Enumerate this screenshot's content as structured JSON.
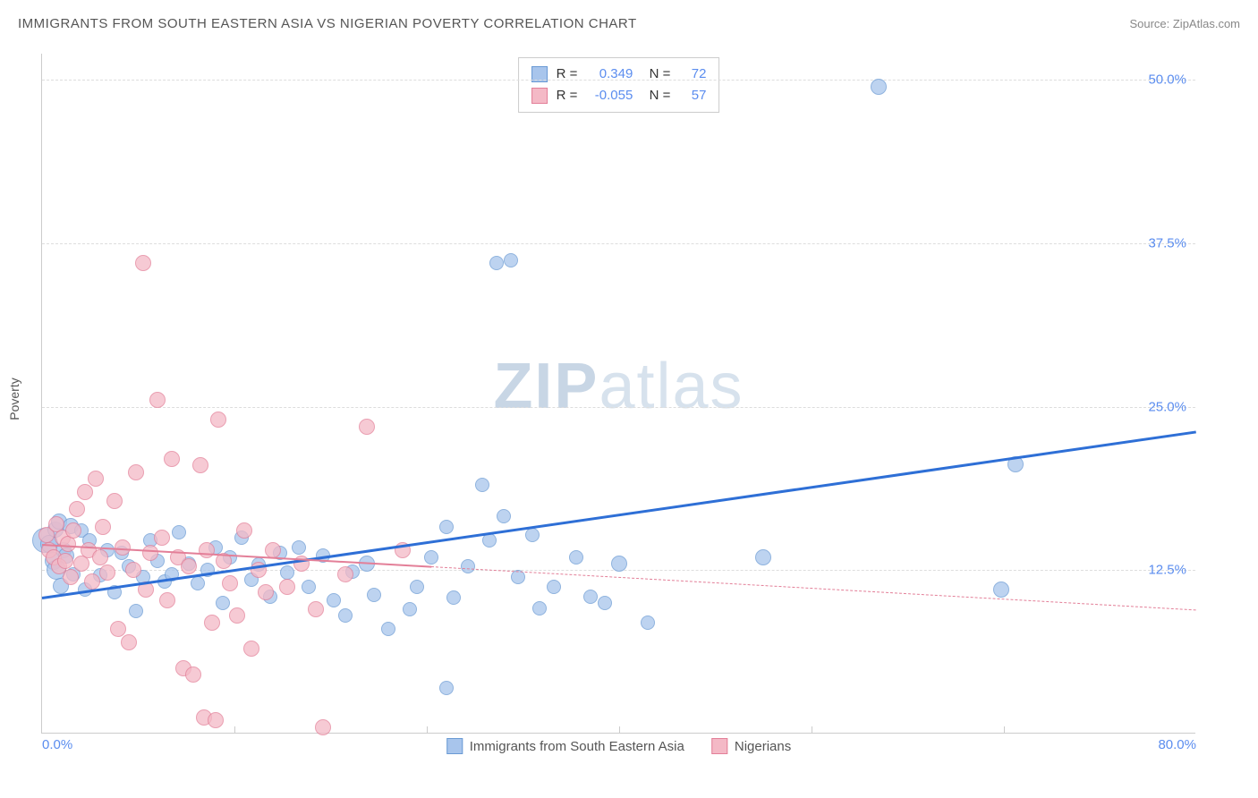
{
  "header": {
    "title": "IMMIGRANTS FROM SOUTH EASTERN ASIA VS NIGERIAN POVERTY CORRELATION CHART",
    "source": "Source: ZipAtlas.com"
  },
  "watermark": {
    "text_bold": "ZIP",
    "text_light": "atlas"
  },
  "chart": {
    "type": "scatter",
    "yaxis_title": "Poverty",
    "xlim": [
      0,
      80
    ],
    "ylim": [
      0,
      52
    ],
    "xticks": [
      {
        "v": 0,
        "label": "0.0%",
        "align": "left"
      },
      {
        "v": 80,
        "label": "80.0%",
        "align": "right"
      }
    ],
    "xticks_minor": [
      13.33,
      26.67,
      40,
      53.33,
      66.67
    ],
    "yticks": [
      {
        "v": 12.5,
        "label": "12.5%"
      },
      {
        "v": 25.0,
        "label": "25.0%"
      },
      {
        "v": 37.5,
        "label": "37.5%"
      },
      {
        "v": 50.0,
        "label": "50.0%"
      }
    ],
    "background_color": "#ffffff",
    "grid_color": "#dddddd",
    "series": [
      {
        "name": "Immigrants from South Eastern Asia",
        "name_short": "sea",
        "R": "0.349",
        "N": "72",
        "marker_fill": "#a8c5ec",
        "marker_stroke": "#6a9ad4",
        "marker_opacity": 0.75,
        "marker_r": 8,
        "trend": {
          "x0": 0,
          "y0": 10.5,
          "x1": 80,
          "y1": 23.2,
          "color": "#2e6fd6",
          "dashed": false,
          "solid_until_x": 80
        },
        "points": [
          [
            0.2,
            14.8,
            14
          ],
          [
            0.5,
            14.5,
            10
          ],
          [
            0.8,
            13.2,
            10
          ],
          [
            0.9,
            15.6,
            9
          ],
          [
            1.0,
            12.5,
            11
          ],
          [
            1.2,
            16.2,
            9
          ],
          [
            1.3,
            11.3,
            9
          ],
          [
            1.5,
            14.0,
            9
          ],
          [
            1.7,
            13.6,
            9
          ],
          [
            2.0,
            15.9,
            9
          ],
          [
            2.2,
            12.2,
            8
          ],
          [
            2.7,
            15.5,
            8
          ],
          [
            3.0,
            11.0,
            8
          ],
          [
            3.3,
            14.8,
            8
          ],
          [
            4.0,
            12.1,
            8
          ],
          [
            4.5,
            14.0,
            8
          ],
          [
            5.0,
            10.8,
            8
          ],
          [
            5.5,
            13.8,
            8
          ],
          [
            6.0,
            12.8,
            8
          ],
          [
            6.5,
            9.4,
            8
          ],
          [
            7.0,
            12.0,
            8
          ],
          [
            7.5,
            14.8,
            8
          ],
          [
            8.0,
            13.2,
            8
          ],
          [
            8.5,
            11.6,
            8
          ],
          [
            9.0,
            12.2,
            8
          ],
          [
            9.5,
            15.4,
            8
          ],
          [
            10.2,
            13.0,
            8
          ],
          [
            10.8,
            11.5,
            8
          ],
          [
            11.5,
            12.5,
            8
          ],
          [
            12.0,
            14.2,
            8
          ],
          [
            12.5,
            10.0,
            8
          ],
          [
            13.0,
            13.5,
            8
          ],
          [
            13.8,
            15.0,
            8
          ],
          [
            14.5,
            11.8,
            8
          ],
          [
            15.0,
            12.9,
            8
          ],
          [
            15.8,
            10.5,
            8
          ],
          [
            16.5,
            13.8,
            8
          ],
          [
            17.0,
            12.3,
            8
          ],
          [
            17.8,
            14.2,
            8
          ],
          [
            18.5,
            11.2,
            8
          ],
          [
            19.5,
            13.6,
            8
          ],
          [
            20.2,
            10.2,
            8
          ],
          [
            21.0,
            9.0,
            8
          ],
          [
            21.5,
            12.4,
            8
          ],
          [
            22.5,
            13.0,
            9
          ],
          [
            23.0,
            10.6,
            8
          ],
          [
            24.0,
            8.0,
            8
          ],
          [
            25.5,
            9.5,
            8
          ],
          [
            26.0,
            11.2,
            8
          ],
          [
            27.0,
            13.5,
            8
          ],
          [
            28.0,
            15.8,
            8
          ],
          [
            28.5,
            10.4,
            8
          ],
          [
            29.5,
            12.8,
            8
          ],
          [
            30.5,
            19.0,
            8
          ],
          [
            31.0,
            14.8,
            8
          ],
          [
            31.5,
            36.0,
            8
          ],
          [
            32.5,
            36.2,
            8
          ],
          [
            32.0,
            16.6,
            8
          ],
          [
            33.0,
            12.0,
            8
          ],
          [
            34.0,
            15.2,
            8
          ],
          [
            34.5,
            9.6,
            8
          ],
          [
            35.5,
            11.2,
            8
          ],
          [
            37.0,
            13.5,
            8
          ],
          [
            38.0,
            10.5,
            8
          ],
          [
            39.0,
            10.0,
            8
          ],
          [
            40.0,
            13.0,
            9
          ],
          [
            28.0,
            3.5,
            8
          ],
          [
            50.0,
            13.5,
            9
          ],
          [
            58.0,
            49.5,
            9
          ],
          [
            66.5,
            11.0,
            9
          ],
          [
            67.5,
            20.6,
            9
          ],
          [
            42.0,
            8.5,
            8
          ]
        ]
      },
      {
        "name": "Nigerians",
        "name_short": "nigerians",
        "R": "-0.055",
        "N": "57",
        "marker_fill": "#f4b9c6",
        "marker_stroke": "#e37f98",
        "marker_opacity": 0.75,
        "marker_r": 8,
        "trend": {
          "x0": 0,
          "y0": 14.5,
          "x1": 80,
          "y1": 9.5,
          "color": "#e37f98",
          "dashed": true,
          "solid_until_x": 27
        },
        "points": [
          [
            0.3,
            15.2,
            9
          ],
          [
            0.5,
            14.0,
            9
          ],
          [
            0.8,
            13.5,
            9
          ],
          [
            1.0,
            16.0,
            9
          ],
          [
            1.2,
            12.8,
            9
          ],
          [
            1.4,
            15.0,
            9
          ],
          [
            1.6,
            13.2,
            9
          ],
          [
            1.8,
            14.5,
            9
          ],
          [
            2.0,
            12.0,
            9
          ],
          [
            2.2,
            15.5,
            9
          ],
          [
            2.4,
            17.2,
            9
          ],
          [
            2.7,
            13.0,
            9
          ],
          [
            3.0,
            18.5,
            9
          ],
          [
            3.2,
            14.0,
            9
          ],
          [
            3.5,
            11.6,
            9
          ],
          [
            3.7,
            19.5,
            9
          ],
          [
            4.0,
            13.5,
            9
          ],
          [
            4.2,
            15.8,
            9
          ],
          [
            4.5,
            12.3,
            9
          ],
          [
            5.0,
            17.8,
            9
          ],
          [
            5.3,
            8.0,
            9
          ],
          [
            5.6,
            14.2,
            9
          ],
          [
            6.0,
            7.0,
            9
          ],
          [
            6.3,
            12.5,
            9
          ],
          [
            6.5,
            20.0,
            9
          ],
          [
            7.0,
            36.0,
            9
          ],
          [
            7.2,
            11.0,
            9
          ],
          [
            7.5,
            13.8,
            9
          ],
          [
            8.0,
            25.5,
            9
          ],
          [
            8.3,
            15.0,
            9
          ],
          [
            8.7,
            10.2,
            9
          ],
          [
            9.0,
            21.0,
            9
          ],
          [
            9.4,
            13.5,
            9
          ],
          [
            9.8,
            5.0,
            9
          ],
          [
            10.2,
            12.8,
            9
          ],
          [
            10.5,
            4.5,
            9
          ],
          [
            11.0,
            20.5,
            9
          ],
          [
            11.4,
            14.0,
            9
          ],
          [
            11.8,
            8.5,
            9
          ],
          [
            12.2,
            24.0,
            9
          ],
          [
            12.6,
            13.2,
            9
          ],
          [
            13.0,
            11.5,
            9
          ],
          [
            13.5,
            9.0,
            9
          ],
          [
            14.0,
            15.5,
            9
          ],
          [
            14.5,
            6.5,
            9
          ],
          [
            11.2,
            1.2,
            9
          ],
          [
            12.0,
            1.0,
            9
          ],
          [
            15.0,
            12.5,
            9
          ],
          [
            15.5,
            10.8,
            9
          ],
          [
            16.0,
            14.0,
            9
          ],
          [
            17.0,
            11.2,
            9
          ],
          [
            18.0,
            13.0,
            9
          ],
          [
            19.0,
            9.5,
            9
          ],
          [
            19.5,
            0.5,
            9
          ],
          [
            21.0,
            12.2,
            9
          ],
          [
            22.5,
            23.5,
            9
          ],
          [
            25.0,
            14.0,
            9
          ]
        ]
      }
    ],
    "legend_bottom": [
      {
        "label": "Immigrants from South Eastern Asia",
        "fill": "#a8c5ec",
        "stroke": "#6a9ad4"
      },
      {
        "label": "Nigerians",
        "fill": "#f4b9c6",
        "stroke": "#e37f98"
      }
    ]
  }
}
